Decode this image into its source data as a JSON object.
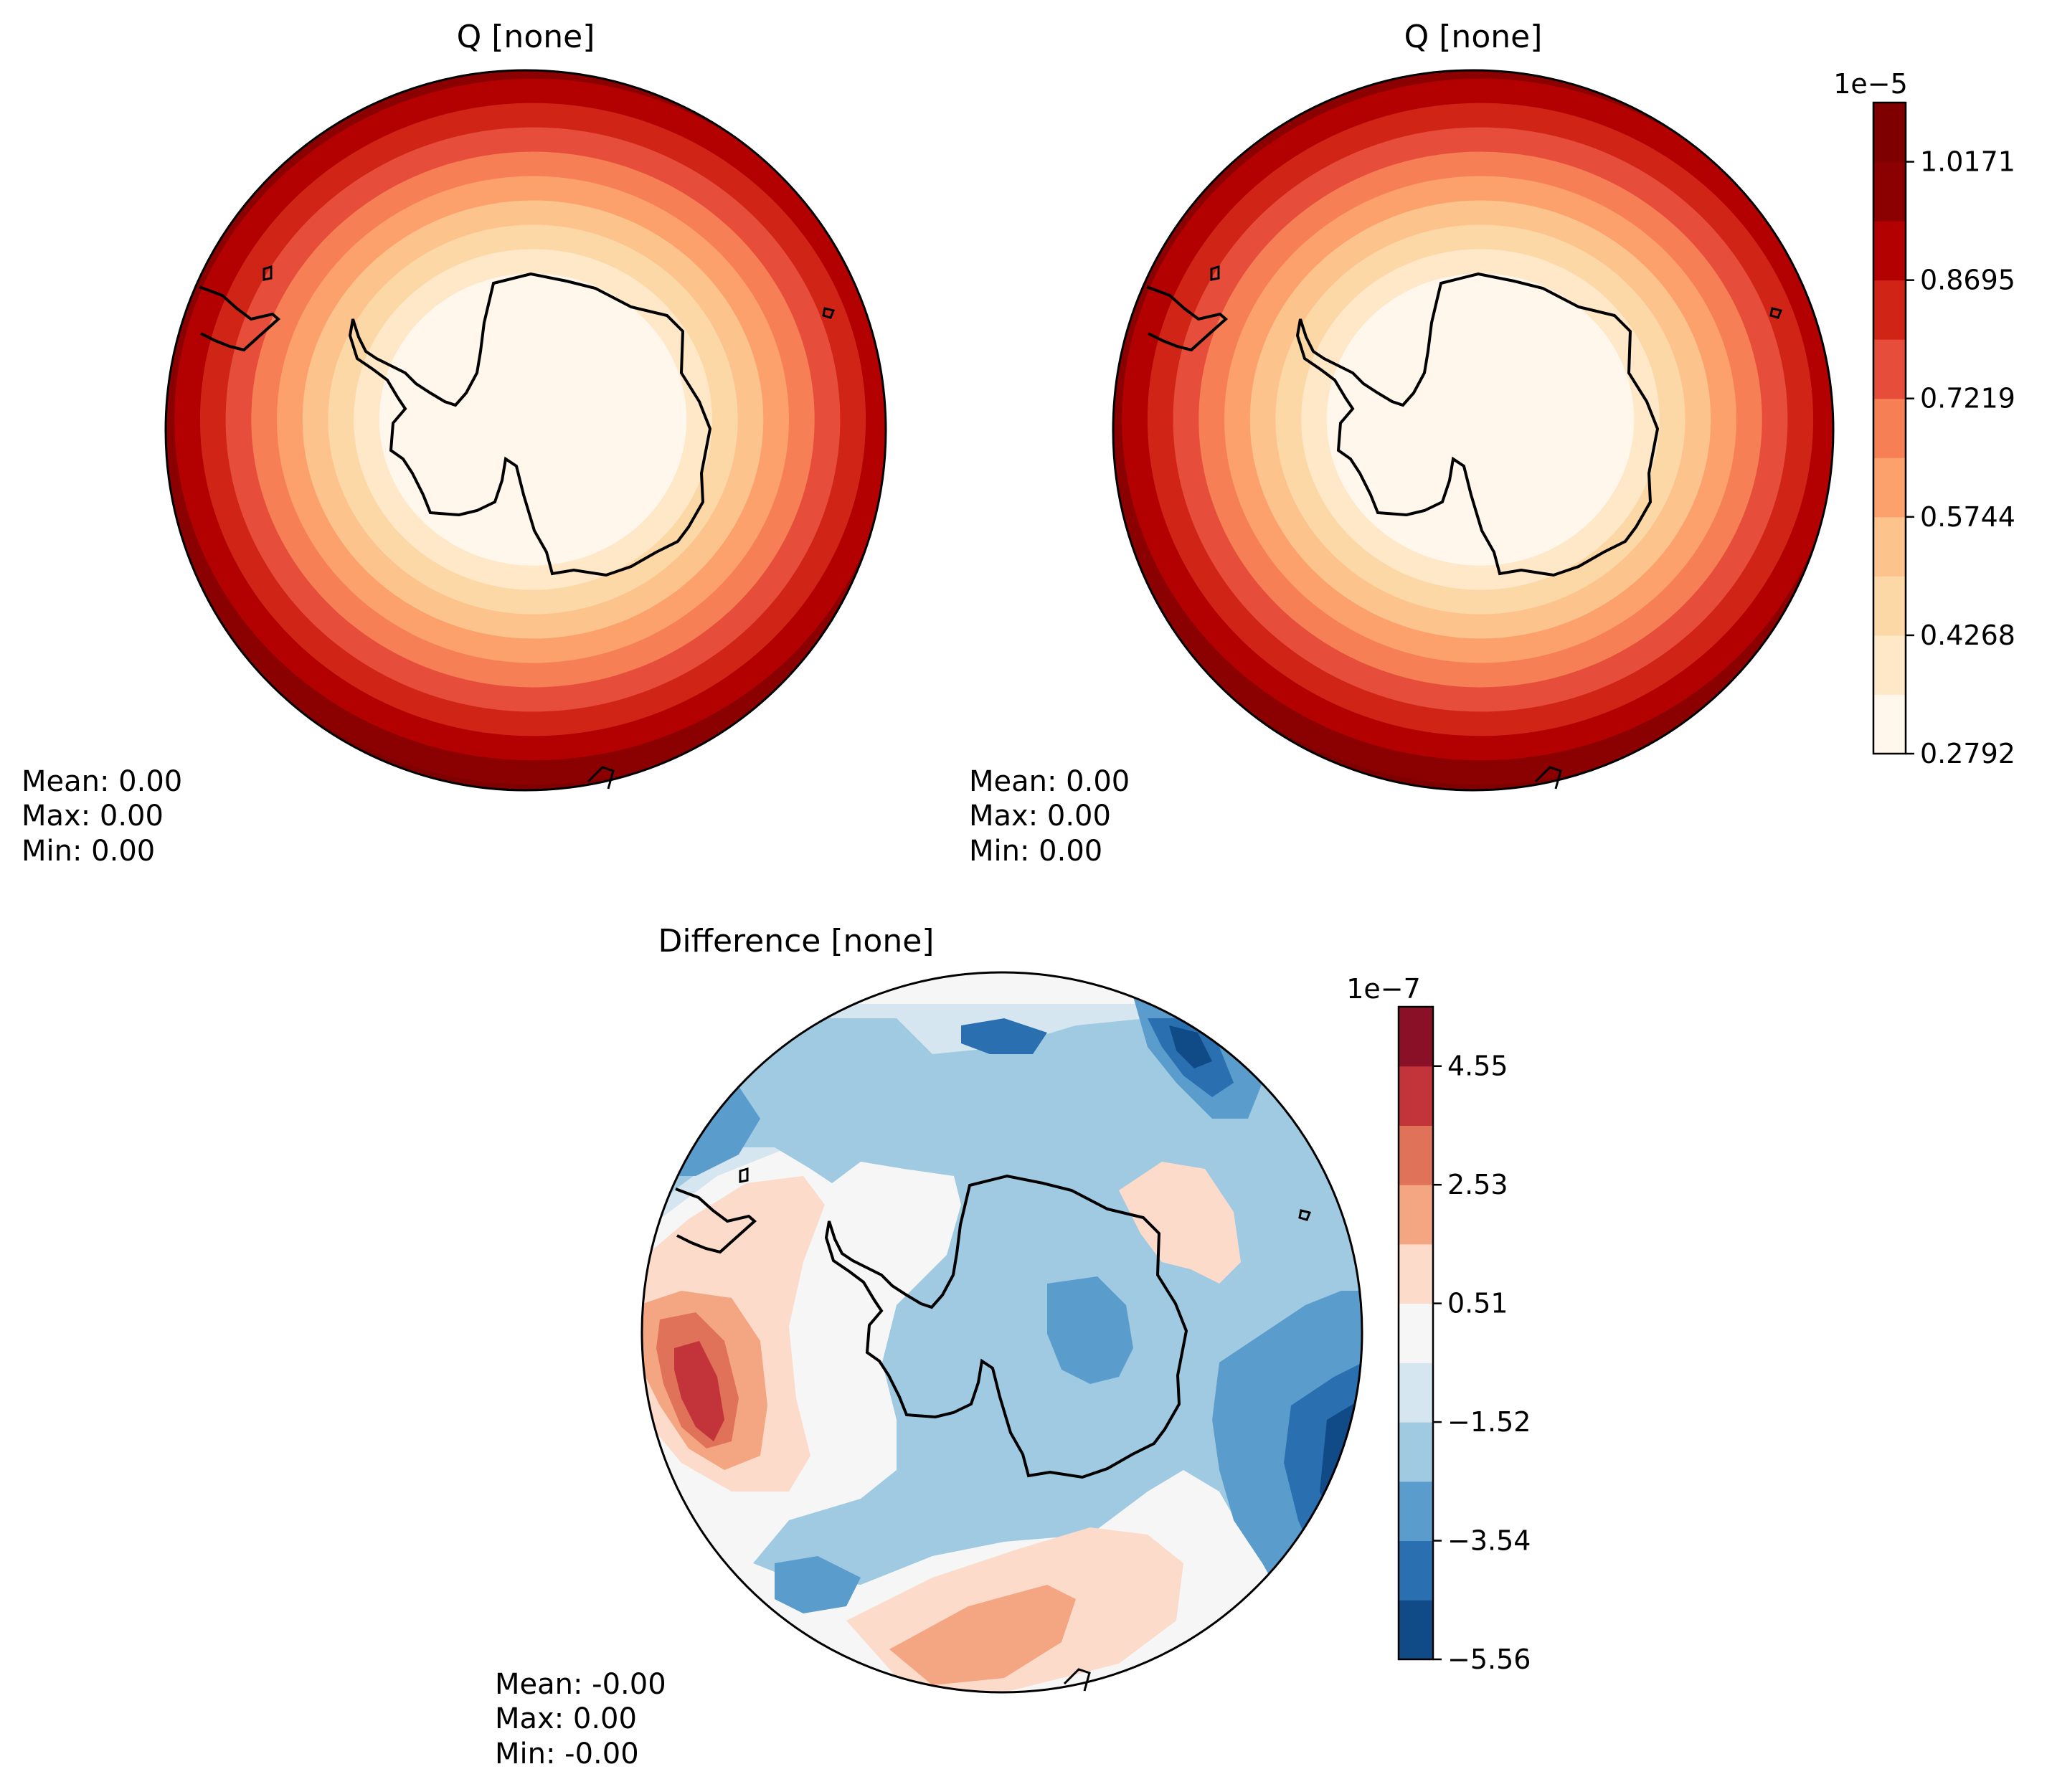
{
  "chart_data": [
    {
      "type": "contourf",
      "title": "Q [none]",
      "projection": "south-polar-stereographic",
      "colormap": "OrRd",
      "levels_shown": [
        "0.2792",
        "0.4268",
        "0.5744",
        "0.7219",
        "0.8695",
        "1.0171"
      ],
      "stats": [
        "Mean:  0.00",
        "Max:  0.00",
        "Min:  0.00"
      ]
    },
    {
      "type": "contourf",
      "title": "Q [none]",
      "projection": "south-polar-stereographic",
      "colormap": "OrRd",
      "stats": [
        "Mean:  0.00",
        "Max:  0.00",
        "Min:  0.00"
      ],
      "colorbar": {
        "exponent": "1e−5",
        "tick_labels": [
          "0.2792",
          "0.4268",
          "0.5744",
          "0.7219",
          "0.8695",
          "1.0171"
        ],
        "colors": [
          "#fff7ec",
          "#fee8c8",
          "#fdd8a7",
          "#fdc38d",
          "#fca16c",
          "#f67f55",
          "#e64e3b",
          "#d02516",
          "#b30000",
          "#8b0000",
          "#7f0000"
        ]
      }
    },
    {
      "type": "contourf",
      "title": "Difference [none]",
      "projection": "south-polar-stereographic",
      "colormap": "RdBu_r",
      "stats": [
        "Mean: -0.00",
        "Max:  0.00",
        "Min: -0.00"
      ],
      "colorbar": {
        "exponent": "1e−7",
        "tick_labels": [
          "−5.56",
          "−3.54",
          "−1.52",
          "0.51",
          "2.53",
          "4.55"
        ],
        "colors": [
          "#104a87",
          "#2a70b1",
          "#5a9dcc",
          "#9fcae1",
          "#d6e6f0",
          "#f6f6f6",
          "#fcdbcb",
          "#f4a582",
          "#e0725a",
          "#c2343a",
          "#8a1028"
        ]
      }
    }
  ]
}
